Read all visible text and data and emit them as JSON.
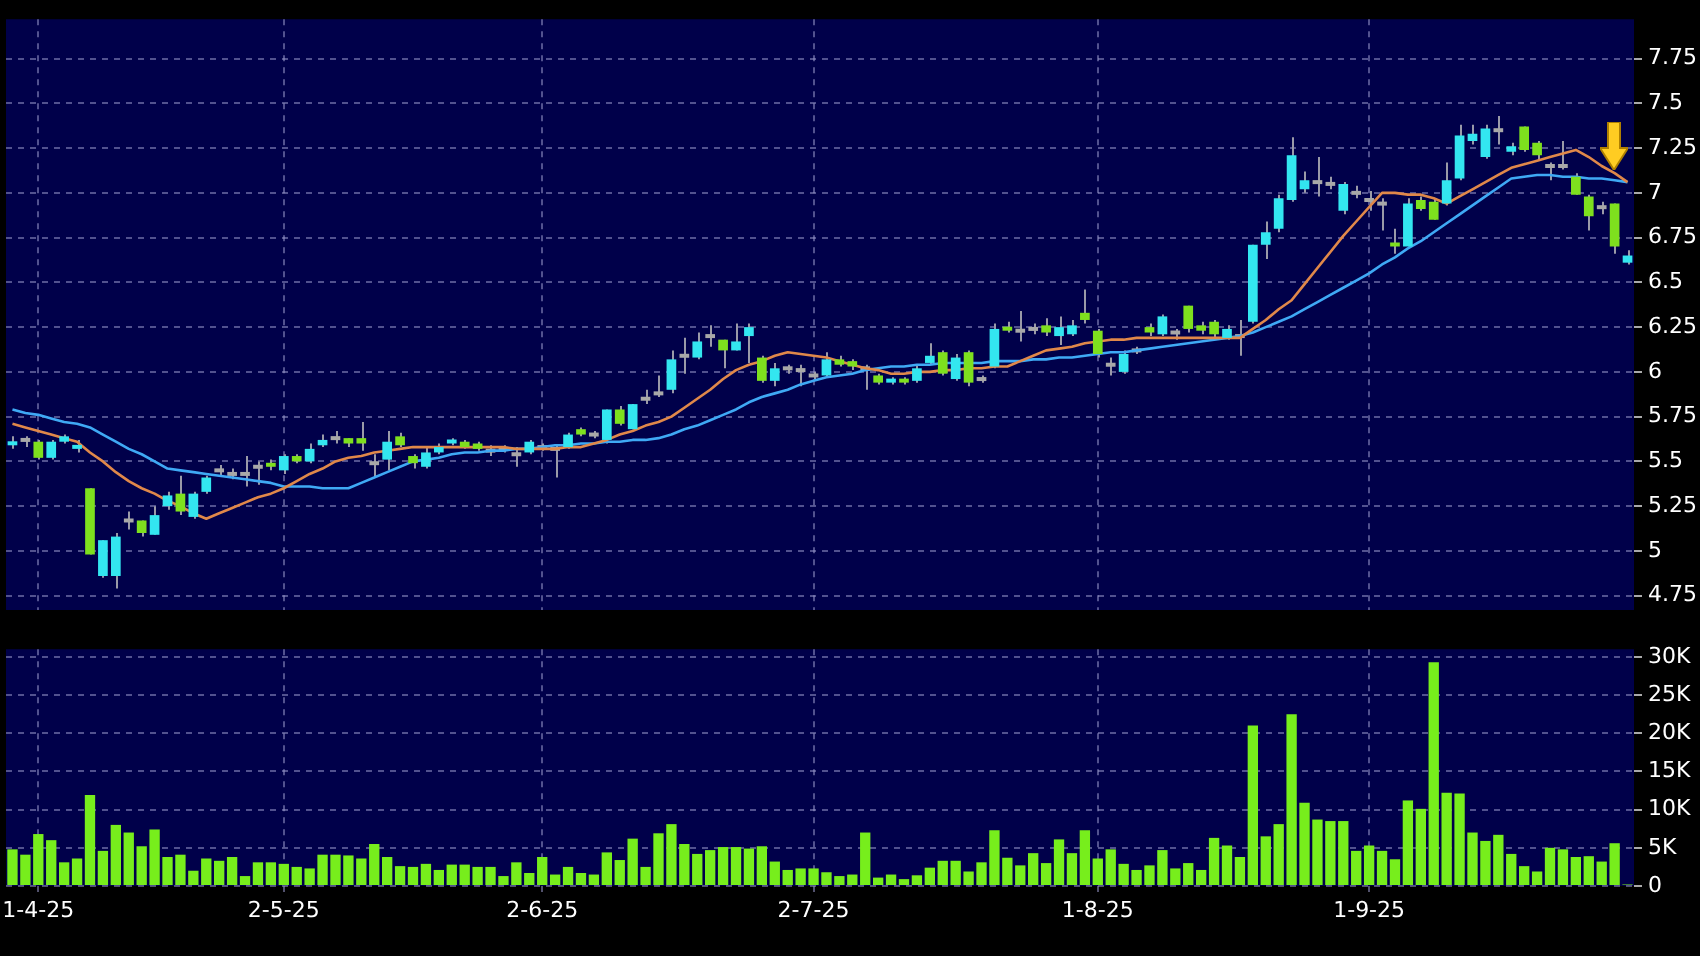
{
  "chart_data": [
    {
      "type": "candlestick",
      "categories": [
        null,
        null,
        null,
        null,
        null,
        null,
        null,
        null,
        null,
        null,
        null,
        null,
        null,
        null,
        null,
        null,
        null,
        null,
        null,
        null,
        null,
        null,
        null,
        null,
        null,
        null,
        null,
        null,
        null,
        null,
        null,
        null,
        null,
        null,
        null,
        null,
        null,
        null,
        null,
        null,
        null,
        null,
        null,
        null,
        null,
        null,
        null,
        null,
        null,
        null,
        null,
        null,
        null,
        null,
        null,
        null,
        null,
        null,
        null,
        null,
        null,
        null,
        null,
        null,
        null,
        null,
        null,
        null,
        null,
        null,
        null,
        null,
        null,
        null,
        null,
        null,
        null,
        null,
        null,
        null,
        null,
        null,
        null,
        null,
        null,
        null,
        null,
        null,
        null,
        null,
        null,
        null,
        null,
        null,
        null,
        null,
        null,
        null,
        null,
        null,
        null,
        null,
        null,
        null,
        null,
        null,
        null,
        null,
        null,
        null,
        null,
        null,
        null,
        null,
        null,
        null,
        null,
        null,
        null,
        null,
        null,
        null,
        null,
        null,
        null,
        null
      ],
      "ohlc": [
        [
          5.59,
          5.64,
          5.57,
          5.61
        ],
        [
          5.62,
          5.64,
          5.58,
          5.62
        ],
        [
          5.61,
          5.62,
          5.51,
          5.52
        ],
        [
          5.52,
          5.62,
          5.51,
          5.61
        ],
        [
          5.61,
          5.65,
          5.6,
          5.64
        ],
        [
          5.57,
          5.62,
          5.55,
          5.59
        ],
        [
          5.35,
          5.35,
          4.98,
          4.98
        ],
        [
          4.86,
          5.06,
          4.85,
          5.06
        ],
        [
          4.86,
          5.1,
          4.79,
          5.08
        ],
        [
          5.17,
          5.22,
          5.12,
          5.17
        ],
        [
          5.17,
          5.17,
          5.08,
          5.1
        ],
        [
          5.09,
          5.25,
          5.09,
          5.2
        ],
        [
          5.25,
          5.33,
          5.23,
          5.31
        ],
        [
          5.32,
          5.42,
          5.2,
          5.22
        ],
        [
          5.19,
          5.33,
          5.18,
          5.32
        ],
        [
          5.33,
          5.42,
          5.32,
          5.41
        ],
        [
          5.45,
          5.48,
          5.42,
          5.45
        ],
        [
          5.43,
          5.46,
          5.4,
          5.43
        ],
        [
          5.43,
          5.53,
          5.36,
          5.43
        ],
        [
          5.47,
          5.5,
          5.37,
          5.47
        ],
        [
          5.49,
          5.51,
          5.45,
          5.47
        ],
        [
          5.45,
          5.54,
          5.43,
          5.53
        ],
        [
          5.53,
          5.54,
          5.49,
          5.5
        ],
        [
          5.5,
          5.6,
          5.49,
          5.57
        ],
        [
          5.59,
          5.65,
          5.58,
          5.62
        ],
        [
          5.63,
          5.67,
          5.6,
          5.63
        ],
        [
          5.63,
          5.63,
          5.58,
          5.6
        ],
        [
          5.63,
          5.72,
          5.56,
          5.6
        ],
        [
          5.49,
          5.54,
          5.41,
          5.49
        ],
        [
          5.51,
          5.67,
          5.45,
          5.61
        ],
        [
          5.64,
          5.66,
          5.58,
          5.59
        ],
        [
          5.53,
          5.54,
          5.46,
          5.49
        ],
        [
          5.47,
          5.58,
          5.46,
          5.55
        ],
        [
          5.55,
          5.6,
          5.54,
          5.58
        ],
        [
          5.6,
          5.63,
          5.59,
          5.62
        ],
        [
          5.61,
          5.62,
          5.57,
          5.58
        ],
        [
          5.6,
          5.61,
          5.56,
          5.57
        ],
        [
          5.56,
          5.59,
          5.53,
          5.56
        ],
        [
          5.57,
          5.59,
          5.55,
          5.57
        ],
        [
          5.54,
          5.58,
          5.47,
          5.54
        ],
        [
          5.55,
          5.62,
          5.54,
          5.61
        ],
        [
          5.58,
          5.6,
          5.56,
          5.58
        ],
        [
          5.57,
          5.59,
          5.41,
          5.57
        ],
        [
          5.58,
          5.66,
          5.57,
          5.65
        ],
        [
          5.68,
          5.69,
          5.64,
          5.65
        ],
        [
          5.65,
          5.67,
          5.63,
          5.65
        ],
        [
          5.62,
          5.79,
          5.6,
          5.79
        ],
        [
          5.79,
          5.81,
          5.7,
          5.71
        ],
        [
          5.68,
          5.82,
          5.68,
          5.82
        ],
        [
          5.85,
          5.9,
          5.82,
          5.85
        ],
        [
          5.88,
          5.98,
          5.86,
          5.88
        ],
        [
          5.9,
          6.12,
          5.88,
          6.07
        ],
        [
          6.09,
          6.19,
          5.99,
          6.09
        ],
        [
          6.08,
          6.22,
          6.07,
          6.17
        ],
        [
          6.2,
          6.26,
          6.14,
          6.2
        ],
        [
          6.18,
          6.18,
          6.02,
          6.12
        ],
        [
          6.12,
          6.27,
          6.12,
          6.17
        ],
        [
          6.2,
          6.27,
          6.05,
          6.25
        ],
        [
          6.08,
          6.09,
          5.94,
          5.95
        ],
        [
          5.95,
          6.05,
          5.92,
          6.02
        ],
        [
          6.02,
          6.04,
          5.99,
          6.02
        ],
        [
          6.01,
          6.04,
          5.92,
          6.01
        ],
        [
          5.98,
          6.0,
          5.96,
          5.98
        ],
        [
          5.98,
          6.11,
          5.97,
          6.07
        ],
        [
          6.07,
          6.09,
          6.03,
          6.04
        ],
        [
          6.06,
          6.07,
          6.01,
          6.03
        ],
        [
          6.02,
          6.04,
          5.9,
          6.02
        ],
        [
          5.98,
          5.99,
          5.93,
          5.94
        ],
        [
          5.94,
          5.97,
          5.93,
          5.96
        ],
        [
          5.96,
          5.97,
          5.93,
          5.94
        ],
        [
          5.95,
          6.04,
          5.94,
          6.02
        ],
        [
          6.05,
          6.16,
          6.04,
          6.09
        ],
        [
          6.11,
          6.12,
          5.98,
          5.99
        ],
        [
          5.96,
          6.1,
          5.95,
          6.08
        ],
        [
          6.11,
          6.12,
          5.92,
          5.94
        ],
        [
          5.96,
          5.98,
          5.94,
          5.96
        ],
        [
          6.03,
          6.27,
          6.02,
          6.24
        ],
        [
          6.25,
          6.28,
          6.22,
          6.23
        ],
        [
          6.23,
          6.34,
          6.17,
          6.23
        ],
        [
          6.24,
          6.27,
          6.21,
          6.24
        ],
        [
          6.26,
          6.3,
          6.2,
          6.22
        ],
        [
          6.2,
          6.31,
          6.15,
          6.25
        ],
        [
          6.21,
          6.29,
          6.2,
          6.26
        ],
        [
          6.33,
          6.46,
          6.27,
          6.29
        ],
        [
          6.23,
          6.24,
          6.08,
          6.1
        ],
        [
          6.04,
          6.08,
          5.98,
          6.04
        ],
        [
          6.0,
          6.12,
          5.99,
          6.1
        ],
        [
          6.12,
          6.14,
          6.1,
          6.12
        ],
        [
          6.25,
          6.27,
          6.2,
          6.22
        ],
        [
          6.21,
          6.32,
          6.2,
          6.31
        ],
        [
          6.22,
          6.24,
          6.18,
          6.22
        ],
        [
          6.37,
          6.37,
          6.22,
          6.24
        ],
        [
          6.26,
          6.28,
          6.21,
          6.23
        ],
        [
          6.28,
          6.29,
          6.19,
          6.21
        ],
        [
          6.19,
          6.26,
          6.18,
          6.24
        ],
        [
          6.2,
          6.29,
          6.09,
          6.2
        ],
        [
          6.28,
          6.71,
          6.27,
          6.71
        ],
        [
          6.71,
          6.84,
          6.63,
          6.78
        ],
        [
          6.8,
          6.99,
          6.78,
          6.97
        ],
        [
          6.96,
          7.31,
          6.95,
          7.21
        ],
        [
          7.02,
          7.12,
          7.0,
          7.07
        ],
        [
          7.06,
          7.2,
          6.98,
          7.06
        ],
        [
          7.05,
          7.09,
          7.02,
          7.05
        ],
        [
          6.9,
          7.06,
          6.88,
          7.05
        ],
        [
          7.0,
          7.04,
          6.97,
          7.0
        ],
        [
          6.96,
          7.01,
          6.9,
          6.96
        ],
        [
          6.94,
          6.97,
          6.79,
          6.94
        ],
        [
          6.72,
          6.8,
          6.66,
          6.7
        ],
        [
          6.7,
          6.97,
          6.7,
          6.94
        ],
        [
          6.96,
          6.98,
          6.9,
          6.91
        ],
        [
          6.95,
          6.97,
          6.85,
          6.85
        ],
        [
          6.94,
          7.17,
          6.93,
          7.07
        ],
        [
          7.08,
          7.38,
          7.07,
          7.32
        ],
        [
          7.29,
          7.38,
          7.27,
          7.33
        ],
        [
          7.2,
          7.38,
          7.19,
          7.36
        ],
        [
          7.35,
          7.43,
          7.27,
          7.35
        ],
        [
          7.23,
          7.28,
          7.21,
          7.26
        ],
        [
          7.37,
          7.37,
          7.23,
          7.24
        ],
        [
          7.28,
          7.29,
          7.18,
          7.21
        ],
        [
          7.15,
          7.17,
          7.07,
          7.15
        ],
        [
          7.15,
          7.29,
          7.13,
          7.15
        ],
        [
          7.09,
          7.11,
          6.99,
          6.99
        ],
        [
          6.98,
          6.99,
          6.79,
          6.87
        ],
        [
          6.92,
          6.95,
          6.88,
          6.92
        ],
        [
          6.94,
          6.94,
          6.66,
          6.7
        ],
        [
          6.61,
          6.68,
          6.6,
          6.65
        ]
      ],
      "colors": [
        "#33e6f0",
        "#a8a8a8",
        "#7ee01e",
        "#33e6f0",
        "#33e6f0",
        "#33e6f0",
        "#7ee01e",
        "#33e6f0",
        "#33e6f0",
        "#a8a8a8",
        "#7ee01e",
        "#33e6f0",
        "#33e6f0",
        "#7ee01e",
        "#33e6f0",
        "#33e6f0",
        "#a8a8a8",
        "#a8a8a8",
        "#a8a8a8",
        "#a8a8a8",
        "#7ee01e",
        "#33e6f0",
        "#7ee01e",
        "#33e6f0",
        "#33e6f0",
        "#a8a8a8",
        "#7ee01e",
        "#7ee01e",
        "#a8a8a8",
        "#33e6f0",
        "#7ee01e",
        "#7ee01e",
        "#33e6f0",
        "#33e6f0",
        "#33e6f0",
        "#7ee01e",
        "#7ee01e",
        "#a8a8a8",
        "#a8a8a8",
        "#a8a8a8",
        "#33e6f0",
        "#a8a8a8",
        "#a8a8a8",
        "#33e6f0",
        "#7ee01e",
        "#a8a8a8",
        "#33e6f0",
        "#7ee01e",
        "#33e6f0",
        "#a8a8a8",
        "#a8a8a8",
        "#33e6f0",
        "#a8a8a8",
        "#33e6f0",
        "#a8a8a8",
        "#7ee01e",
        "#33e6f0",
        "#33e6f0",
        "#7ee01e",
        "#33e6f0",
        "#a8a8a8",
        "#a8a8a8",
        "#a8a8a8",
        "#33e6f0",
        "#7ee01e",
        "#7ee01e",
        "#a8a8a8",
        "#7ee01e",
        "#33e6f0",
        "#7ee01e",
        "#33e6f0",
        "#33e6f0",
        "#7ee01e",
        "#33e6f0",
        "#7ee01e",
        "#a8a8a8",
        "#33e6f0",
        "#7ee01e",
        "#a8a8a8",
        "#a8a8a8",
        "#7ee01e",
        "#33e6f0",
        "#33e6f0",
        "#7ee01e",
        "#7ee01e",
        "#a8a8a8",
        "#33e6f0",
        "#a8a8a8",
        "#7ee01e",
        "#33e6f0",
        "#a8a8a8",
        "#7ee01e",
        "#7ee01e",
        "#7ee01e",
        "#33e6f0",
        "#a8a8a8",
        "#33e6f0",
        "#33e6f0",
        "#33e6f0",
        "#33e6f0",
        "#33e6f0",
        "#a8a8a8",
        "#a8a8a8",
        "#33e6f0",
        "#a8a8a8",
        "#a8a8a8",
        "#a8a8a8",
        "#7ee01e",
        "#33e6f0",
        "#7ee01e",
        "#7ee01e",
        "#33e6f0",
        "#33e6f0",
        "#33e6f0",
        "#33e6f0",
        "#a8a8a8",
        "#33e6f0",
        "#7ee01e",
        "#7ee01e",
        "#a8a8a8",
        "#a8a8a8",
        "#7ee01e",
        "#7ee01e",
        "#a8a8a8",
        "#7ee01e",
        "#33e6f0"
      ],
      "series": [
        {
          "type": "line",
          "color": "#e0884a",
          "values": [
            5.71,
            5.69,
            5.67,
            5.65,
            5.63,
            5.61,
            5.55,
            5.5,
            5.44,
            5.39,
            5.35,
            5.32,
            5.28,
            5.25,
            5.21,
            5.18,
            5.21,
            5.24,
            5.27,
            5.3,
            5.32,
            5.35,
            5.39,
            5.43,
            5.46,
            5.5,
            5.52,
            5.53,
            5.55,
            5.56,
            5.57,
            5.58,
            5.58,
            5.58,
            5.58,
            5.58,
            5.58,
            5.58,
            5.58,
            5.57,
            5.57,
            5.57,
            5.57,
            5.58,
            5.58,
            5.6,
            5.62,
            5.65,
            5.67,
            5.7,
            5.72,
            5.75,
            5.8,
            5.85,
            5.9,
            5.96,
            6.01,
            6.04,
            6.06,
            6.09,
            6.11,
            6.1,
            6.09,
            6.08,
            6.06,
            6.04,
            6.02,
            6.01,
            5.99,
            5.99,
            6.0,
            6.0,
            6.01,
            6.01,
            6.02,
            6.02,
            6.03,
            6.03,
            6.06,
            6.09,
            6.12,
            6.13,
            6.14,
            6.16,
            6.17,
            6.18,
            6.18,
            6.19,
            6.19,
            6.19,
            6.19,
            6.19,
            6.19,
            6.19,
            6.19,
            6.19,
            6.24,
            6.29,
            6.35,
            6.4,
            6.49,
            6.58,
            6.67,
            6.76,
            6.84,
            6.92,
            7.0,
            7.0,
            6.99,
            6.99,
            6.97,
            6.94,
            6.98,
            7.02,
            7.06,
            7.1,
            7.14,
            7.16,
            7.18,
            7.2,
            7.22,
            7.24,
            7.2,
            7.15,
            7.11,
            7.06
          ]
        },
        {
          "type": "line",
          "color": "#3fa9f5",
          "values": [
            5.79,
            5.77,
            5.76,
            5.74,
            5.72,
            5.71,
            5.69,
            5.65,
            5.61,
            5.57,
            5.54,
            5.5,
            5.46,
            5.45,
            5.44,
            5.43,
            5.42,
            5.41,
            5.4,
            5.39,
            5.38,
            5.36,
            5.36,
            5.36,
            5.35,
            5.35,
            5.35,
            5.38,
            5.41,
            5.44,
            5.47,
            5.5,
            5.51,
            5.52,
            5.54,
            5.55,
            5.55,
            5.56,
            5.56,
            5.57,
            5.57,
            5.58,
            5.59,
            5.59,
            5.6,
            5.6,
            5.61,
            5.61,
            5.62,
            5.62,
            5.63,
            5.65,
            5.68,
            5.7,
            5.73,
            5.76,
            5.79,
            5.83,
            5.86,
            5.88,
            5.9,
            5.93,
            5.95,
            5.97,
            5.98,
            5.99,
            6.01,
            6.02,
            6.03,
            6.03,
            6.04,
            6.04,
            6.05,
            6.05,
            6.05,
            6.05,
            6.06,
            6.06,
            6.06,
            6.07,
            6.07,
            6.08,
            6.08,
            6.09,
            6.1,
            6.11,
            6.11,
            6.12,
            6.13,
            6.14,
            6.15,
            6.16,
            6.17,
            6.18,
            6.19,
            6.2,
            6.22,
            6.25,
            6.28,
            6.31,
            6.35,
            6.39,
            6.43,
            6.47,
            6.51,
            6.55,
            6.6,
            6.64,
            6.69,
            6.73,
            6.78,
            6.83,
            6.88,
            6.93,
            6.98,
            7.03,
            7.08,
            7.09,
            7.1,
            7.1,
            7.09,
            7.09,
            7.08,
            7.08,
            7.07,
            7.06
          ]
        }
      ],
      "ylim": [
        4.67,
        7.97
      ],
      "yticks": [
        4.75,
        5,
        5.25,
        5.5,
        5.75,
        6,
        6.25,
        6.5,
        6.75,
        7,
        7.25,
        7.5,
        7.75
      ],
      "grid": true,
      "legend": false,
      "tick_labels": "y"
    },
    {
      "type": "bar",
      "categories": [
        null,
        null,
        "1-4-25",
        null,
        null,
        null,
        null,
        null,
        null,
        null,
        null,
        null,
        null,
        null,
        null,
        null,
        null,
        null,
        null,
        null,
        null,
        "2-5-25",
        null,
        null,
        null,
        null,
        null,
        null,
        null,
        null,
        null,
        null,
        null,
        null,
        null,
        null,
        null,
        null,
        null,
        null,
        null,
        "2-6-25",
        null,
        null,
        null,
        null,
        null,
        null,
        null,
        null,
        null,
        null,
        null,
        null,
        null,
        null,
        null,
        null,
        null,
        null,
        null,
        null,
        "2-7-25",
        null,
        null,
        null,
        null,
        null,
        null,
        null,
        null,
        null,
        null,
        null,
        null,
        null,
        null,
        null,
        null,
        null,
        null,
        null,
        null,
        null,
        "1-8-25",
        null,
        null,
        null,
        null,
        null,
        null,
        null,
        null,
        null,
        null,
        null,
        null,
        null,
        null,
        null,
        null,
        null,
        null,
        null,
        null,
        "1-9-25",
        null,
        null,
        null,
        null,
        null,
        null,
        null,
        null,
        null,
        null,
        null,
        null,
        null,
        null,
        null,
        null,
        null,
        null,
        null,
        null
      ],
      "values": [
        4800,
        4100,
        6800,
        6000,
        3100,
        3600,
        11900,
        4600,
        8000,
        7000,
        5200,
        7400,
        3800,
        4100,
        2000,
        3600,
        3300,
        3800,
        1300,
        3100,
        3100,
        2900,
        2500,
        2300,
        4100,
        4100,
        4000,
        3600,
        5500,
        3800,
        2600,
        2500,
        2900,
        2100,
        2800,
        2800,
        2500,
        2500,
        1300,
        3100,
        1700,
        3800,
        1500,
        2500,
        1700,
        1500,
        4400,
        3400,
        6200,
        2500,
        6900,
        8100,
        5500,
        4200,
        4700,
        5100,
        5100,
        4900,
        5200,
        3200,
        2100,
        2300,
        2300,
        1800,
        1300,
        1500,
        7000,
        1100,
        1500,
        900,
        1400,
        2400,
        3300,
        3300,
        1900,
        3100,
        7300,
        3700,
        2700,
        4300,
        3000,
        6100,
        4300,
        7300,
        3600,
        4800,
        2900,
        2100,
        2700,
        4700,
        2300,
        3000,
        2100,
        6300,
        5300,
        3800,
        21000,
        6500,
        8100,
        22500,
        10900,
        8700,
        8500,
        8500,
        4600,
        5300,
        4600,
        3500,
        11200,
        10100,
        29300,
        12200,
        12100,
        7000,
        5900,
        6700,
        4200,
        2600,
        1900,
        5000,
        4800,
        3800,
        3900,
        3200,
        5600,
        200
      ],
      "color": "#77ee1c",
      "ylim": [
        0,
        31000
      ],
      "yticks": [
        0,
        {
          "value": 5000,
          "label": "5K"
        },
        {
          "value": 10000,
          "label": "10K"
        },
        {
          "value": 15000,
          "label": "15K"
        },
        {
          "value": 20000,
          "label": "20K"
        },
        {
          "value": 25000,
          "label": "25K"
        },
        {
          "value": 30000,
          "label": "30K"
        }
      ],
      "grid": true,
      "legend": false
    }
  ]
}
